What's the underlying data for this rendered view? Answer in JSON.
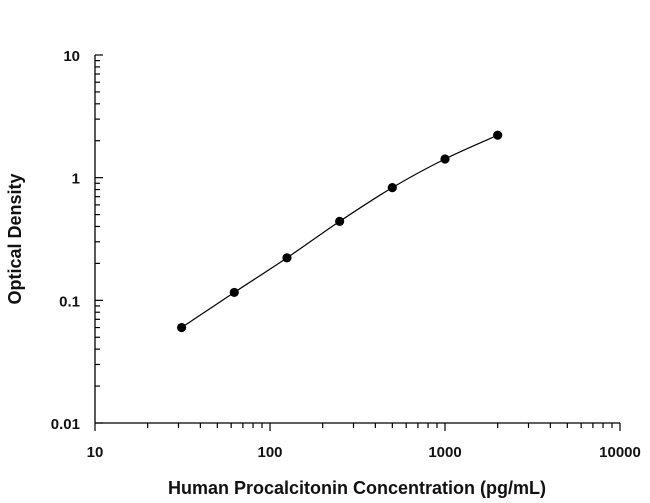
{
  "chart_data": {
    "type": "scatter",
    "title": "",
    "xlabel": "Human Procalcitonin Concentration (pg/mL)",
    "ylabel": "Optical Density",
    "x_scale": "log",
    "y_scale": "log",
    "xlim": [
      10,
      10000
    ],
    "ylim": [
      0.01,
      10
    ],
    "x_tick_labels": [
      "10",
      "100",
      "1000",
      "10000"
    ],
    "y_tick_labels": [
      "10",
      "1",
      "0.1",
      "0.01"
    ],
    "grid": false,
    "legend": "none",
    "fit_curve": true,
    "marker_color": "#000000",
    "line_color": "#000000",
    "series": [
      {
        "x": [
          31.25,
          62.5,
          125,
          250,
          500,
          1000,
          2000
        ],
        "y": [
          0.06,
          0.116,
          0.222,
          0.44,
          0.83,
          1.42,
          2.22
        ]
      }
    ]
  }
}
